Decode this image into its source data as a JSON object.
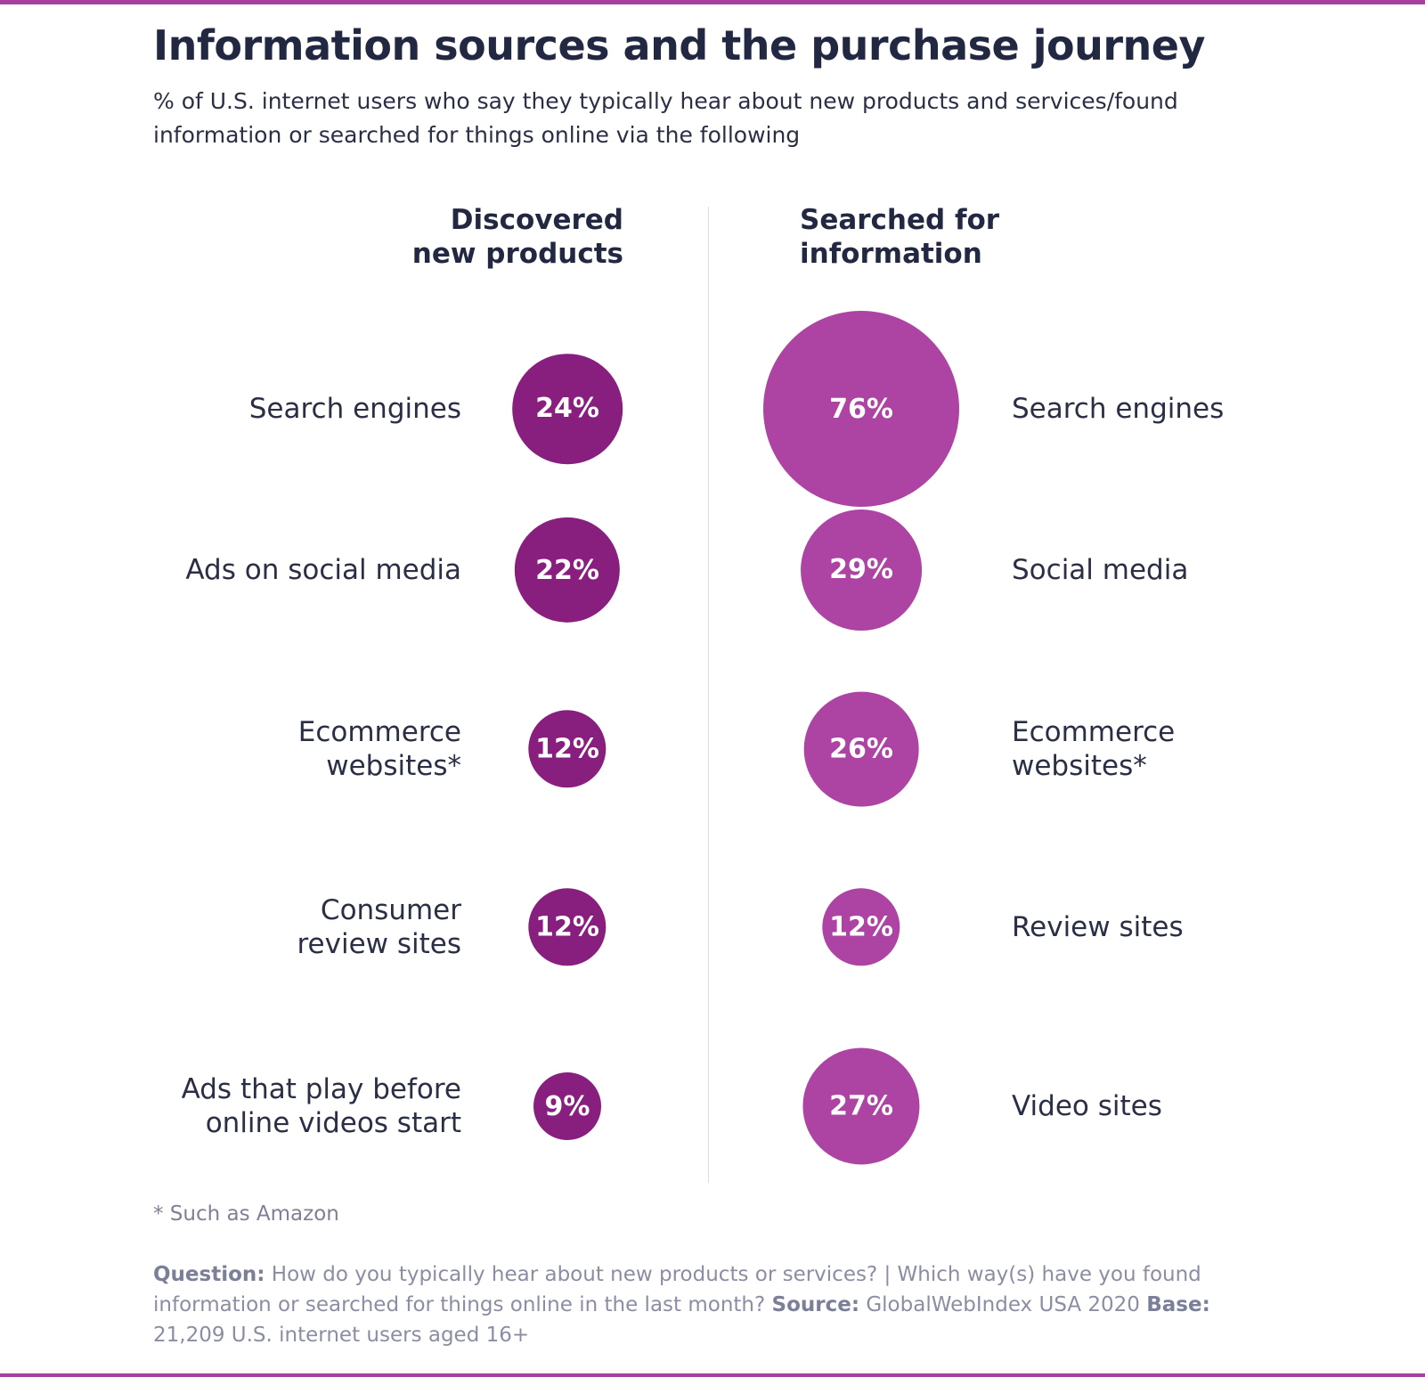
{
  "title": "Information sources and the purchase journey",
  "subtitle": "% of U.S. internet users who say they typically hear about new products and services/found information or searched for things online via the following",
  "colors": {
    "accent": "#a4409e",
    "discovered": "#881f7f",
    "searched": "#ad43a3"
  },
  "chart_data": {
    "type": "bubble",
    "title": "Information sources and the purchase journey",
    "subtitle": "% of U.S. internet users who say they typically hear about new products and services/found information or searched for things online via the following",
    "unit": "%",
    "series": [
      {
        "name": "Discovered\nnew products",
        "color": "#881f7f",
        "items": [
          {
            "label": "Search engines",
            "value": 24,
            "text": "24%"
          },
          {
            "label": "Ads on social media",
            "value": 22,
            "text": "22%"
          },
          {
            "label": "Ecommerce\nwebsites*",
            "value": 12,
            "text": "12%"
          },
          {
            "label": "Consumer\nreview sites",
            "value": 12,
            "text": "12%"
          },
          {
            "label": "Ads that play before\nonline videos start",
            "value": 9,
            "text": "9%"
          }
        ]
      },
      {
        "name": "Searched for\ninformation",
        "color": "#ad43a3",
        "items": [
          {
            "label": "Search engines",
            "value": 76,
            "text": "76%"
          },
          {
            "label": "Social media",
            "value": 29,
            "text": "29%"
          },
          {
            "label": "Ecommerce\nwebsites*",
            "value": 26,
            "text": "26%"
          },
          {
            "label": "Review sites",
            "value": 12,
            "text": "12%"
          },
          {
            "label": "Video sites",
            "value": 27,
            "text": "27%"
          }
        ]
      }
    ]
  },
  "footnote": "* Such as Amazon",
  "source": {
    "question_label": "Question:",
    "question_text": " How do you typically hear about new products or services? | Which way(s) have you found information or searched for things online in the last month? ",
    "source_label": "Source:",
    "source_text": " GlobalWebIndex USA 2020 ",
    "base_label": "Base:",
    "base_text": " 21,209 U.S. internet users aged 16+"
  }
}
